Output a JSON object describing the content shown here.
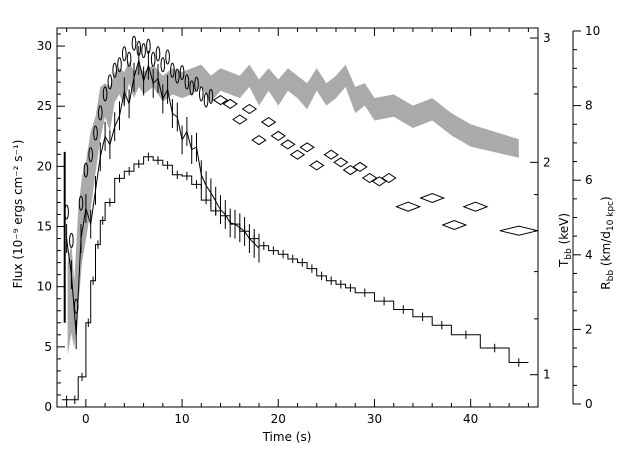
{
  "chart_data": {
    "type": "line",
    "title": "",
    "xlabel": "Time (s)",
    "ylabel": "Flux (10⁻⁹ ergs cm⁻² s⁻¹)",
    "ylabel_right_inner": "T_bb (keV)",
    "ylabel_right_outer": "R_bb (km/d_10 kpc)",
    "xlim": [
      -3,
      47
    ],
    "ylim": [
      0,
      31.5
    ],
    "x_ticks": [
      0,
      10,
      20,
      30,
      40
    ],
    "y_ticks": [
      0,
      5,
      10,
      15,
      20,
      25,
      30
    ],
    "tbb_axis": {
      "scale": "log",
      "range": [
        0.9,
        3.1
      ],
      "ticks": [
        1,
        2,
        3
      ]
    },
    "rbb_axis": {
      "scale": "linear",
      "range": [
        0,
        10
      ],
      "ticks": [
        0,
        2,
        4,
        6,
        8,
        10
      ]
    },
    "grid": false,
    "legend": "none",
    "series": [
      {
        "kind": "flux-histogram",
        "color": "#000000",
        "x": [
          -2.5,
          -1.5,
          -0.8,
          0,
          0.5,
          1,
          1.5,
          2,
          3,
          4,
          5,
          6,
          7,
          8,
          9,
          10,
          11,
          12,
          13,
          14,
          15,
          16,
          17,
          18,
          19,
          20,
          21,
          22,
          23,
          24,
          25,
          26,
          27,
          28,
          30,
          32,
          34,
          36,
          38,
          41,
          44,
          46
        ],
        "y": [
          0.6,
          0.6,
          2.5,
          7,
          10.5,
          13.5,
          15.5,
          17,
          19,
          19.6,
          20.2,
          20.8,
          20.5,
          20.1,
          19.3,
          19.2,
          18.5,
          17.2,
          16.3,
          15.9,
          15.2,
          14.6,
          14,
          13.4,
          13,
          12.7,
          12.3,
          12,
          11.5,
          10.9,
          10.5,
          10.2,
          9.9,
          9.5,
          8.8,
          8.1,
          7.5,
          6.8,
          6,
          4.9,
          3.7,
          3.7
        ]
      },
      {
        "kind": "flux-fine-resolution",
        "color": "#000000",
        "x": [
          -2,
          -1.5,
          -1,
          -0.5,
          0,
          0.5,
          1,
          1.5,
          2,
          2.5,
          3,
          3.5,
          4,
          4.5,
          5,
          5.5,
          6,
          6.5,
          7,
          7.5,
          8,
          8.5,
          9,
          9.5,
          10,
          10.5,
          11,
          11.5,
          12,
          12.5,
          13,
          13.5,
          14,
          14.5,
          15,
          15.5,
          16,
          16.5,
          17,
          17.5,
          18
        ],
        "y": [
          14,
          11,
          6,
          14,
          16.5,
          15.2,
          18,
          20.8,
          22.5,
          21.8,
          23.3,
          24.2,
          26.2,
          25.2,
          27.4,
          28.8,
          27.1,
          28.4,
          26.9,
          27.3,
          25.6,
          26.4,
          24.4,
          24.1,
          22.2,
          22.9,
          21.4,
          21.6,
          19.3,
          18.4,
          17.8,
          17.1,
          16.4,
          16,
          15.3,
          15.2,
          14.9,
          14.6,
          14,
          13.6,
          13.2
        ]
      },
      {
        "kind": "rbb-band",
        "color": "#aaaaaa",
        "x": [
          -1.9,
          -1.5,
          -1.2,
          -0.8,
          -0.4,
          0,
          0.5,
          1,
          1.5,
          2,
          2.5,
          3,
          3.5,
          4,
          4.5,
          5,
          5.5,
          6,
          7,
          8,
          9,
          10,
          11,
          12,
          13,
          14,
          15,
          16,
          17,
          18,
          19,
          20,
          21,
          22,
          23,
          24,
          25,
          26,
          27,
          28,
          29,
          30,
          32,
          34,
          36,
          38,
          40,
          45
        ],
        "lower": [
          1.3,
          1.9,
          1.5,
          2.6,
          3.8,
          4.4,
          5.2,
          6.2,
          7.1,
          7.7,
          7.3,
          8.1,
          8.3,
          8.0,
          8.6,
          8.2,
          8.5,
          8.3,
          8.5,
          8.1,
          8.3,
          8.2,
          8.3,
          8.5,
          8.1,
          8.4,
          8.3,
          8.2,
          8.5,
          8.0,
          8.4,
          8.0,
          8.4,
          8.2,
          7.9,
          8.4,
          8.0,
          8.2,
          8.5,
          7.8,
          8.0,
          7.6,
          7.7,
          7.4,
          7.6,
          7.2,
          6.9,
          6.6
        ],
        "upper": [
          3.8,
          4.3,
          3.3,
          5.2,
          6.1,
          6.5,
          7.3,
          7.7,
          8.5,
          8.6,
          8.5,
          8.9,
          9.0,
          8.9,
          9.2,
          8.9,
          9.1,
          8.9,
          9.1,
          8.8,
          9.0,
          8.9,
          9.0,
          9.1,
          8.8,
          9.0,
          8.9,
          8.8,
          9.1,
          8.7,
          9.0,
          8.7,
          9.0,
          8.8,
          8.6,
          9.0,
          8.6,
          8.8,
          9.1,
          8.5,
          8.6,
          8.2,
          8.3,
          8.0,
          8.2,
          7.8,
          7.5,
          7.1
        ]
      },
      {
        "kind": "tbb-diamonds",
        "color": "#000000",
        "x": [
          14,
          15,
          16,
          17,
          18,
          19,
          20,
          21,
          22,
          23,
          24,
          25.5,
          26.5,
          27.5,
          28.5,
          29.5,
          30.5,
          31.5,
          33.5,
          36,
          38.3,
          40.5,
          45
        ],
        "y": [
          2.45,
          2.42,
          2.3,
          2.38,
          2.15,
          2.28,
          2.18,
          2.12,
          2.05,
          2.1,
          1.98,
          2.05,
          2.0,
          1.95,
          1.97,
          1.9,
          1.88,
          1.9,
          1.73,
          1.78,
          1.63,
          1.73,
          1.6
        ],
        "width": [
          1,
          1,
          1,
          1,
          1,
          1,
          1,
          1,
          1,
          1,
          1,
          1,
          1,
          1,
          1,
          1,
          1,
          1,
          2,
          2,
          2,
          2,
          3.5
        ]
      },
      {
        "kind": "tbb-early-errors",
        "color": "#000000",
        "x": [
          -2,
          -1.5,
          -1,
          -0.5,
          0,
          0.5,
          1,
          1.5,
          2,
          2.5,
          3,
          3.5,
          4,
          4.5,
          5,
          5.5,
          6,
          6.5,
          7,
          7.5,
          8,
          8.5,
          9,
          9.5,
          10,
          10.5,
          11,
          11.5,
          12,
          12.5,
          13
        ],
        "y": [
          1.7,
          1.55,
          1.25,
          1.75,
          1.95,
          2.05,
          2.2,
          2.35,
          2.5,
          2.6,
          2.7,
          2.75,
          2.85,
          2.8,
          2.95,
          2.9,
          2.88,
          2.92,
          2.8,
          2.85,
          2.75,
          2.82,
          2.7,
          2.65,
          2.68,
          2.6,
          2.55,
          2.58,
          2.5,
          2.45,
          2.48
        ]
      }
    ]
  }
}
